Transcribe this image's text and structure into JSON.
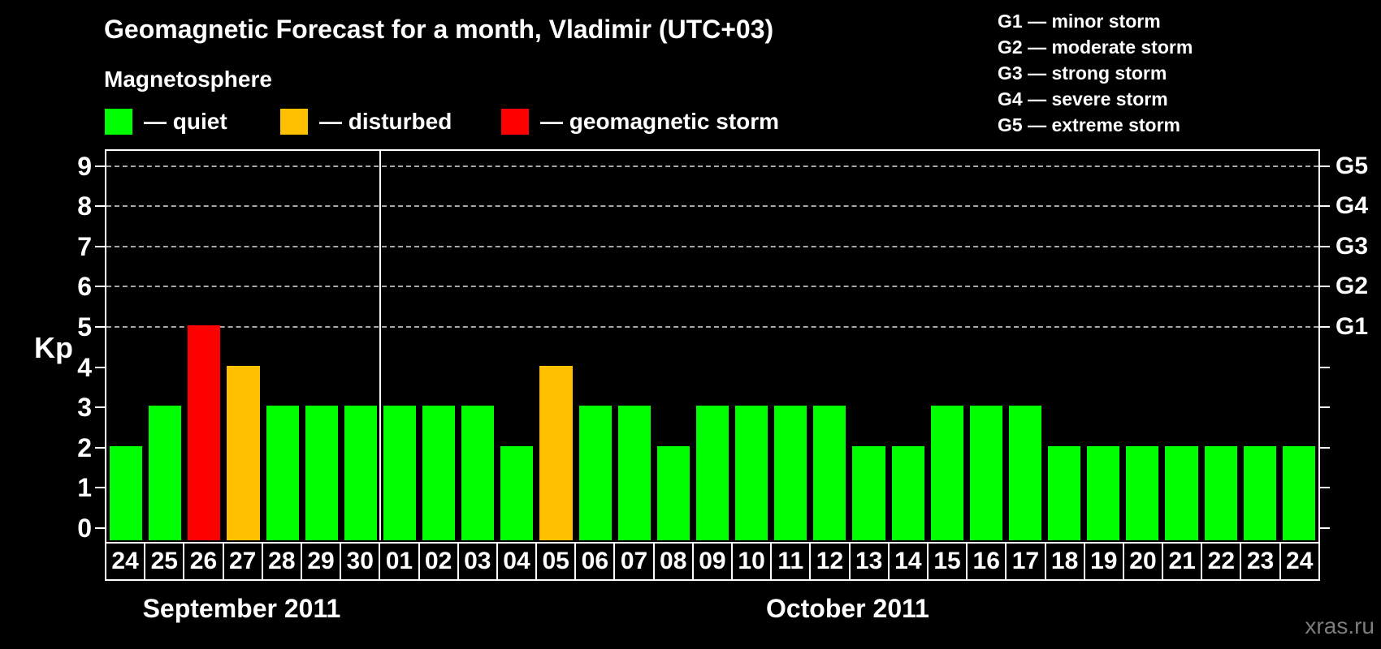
{
  "title": "Geomagnetic Forecast for a month, Vladimir (UTC+03)",
  "subtitle": "Magnetosphere",
  "legend": {
    "items": [
      {
        "label": "— quiet",
        "color": "#00ff00"
      },
      {
        "label": "— disturbed",
        "color": "#ffc000"
      },
      {
        "label": "— geomagnetic storm",
        "color": "#ff0000"
      }
    ]
  },
  "g_legend": {
    "items": [
      "G1 — minor storm",
      "G2 — moderate storm",
      "G3 — strong storm",
      "G4 — severe storm",
      "G5 — extreme storm"
    ]
  },
  "watermark": "xras.ru",
  "chart_data": {
    "type": "bar",
    "title": "Geomagnetic Forecast for a month, Vladimir (UTC+03)",
    "ylabel": "Kp",
    "ylim": [
      0,
      9.4
    ],
    "yticks": [
      "0",
      "1",
      "2",
      "3",
      "4",
      "5",
      "6",
      "7",
      "8",
      "9"
    ],
    "grid": "dashed horizontal lines at Kp 5-9 only",
    "gridlines_at": [
      5,
      6,
      7,
      8,
      9
    ],
    "right_axis_labels": [
      {
        "label": "G1",
        "kp": 5
      },
      {
        "label": "G2",
        "kp": 6
      },
      {
        "label": "G3",
        "kp": 7
      },
      {
        "label": "G4",
        "kp": 8
      },
      {
        "label": "G5",
        "kp": 9
      }
    ],
    "months": [
      {
        "label": "September 2011",
        "days": 7
      },
      {
        "label": "October 2011",
        "days": 24
      }
    ],
    "categories": [
      "24",
      "25",
      "26",
      "27",
      "28",
      "29",
      "30",
      "01",
      "02",
      "03",
      "04",
      "05",
      "06",
      "07",
      "08",
      "09",
      "10",
      "11",
      "12",
      "13",
      "14",
      "15",
      "16",
      "17",
      "18",
      "19",
      "20",
      "21",
      "22",
      "23",
      "24"
    ],
    "values": [
      2,
      3,
      5,
      4,
      3,
      3,
      3,
      3,
      3,
      3,
      2,
      4,
      3,
      3,
      2,
      3,
      3,
      3,
      3,
      2,
      2,
      3,
      3,
      3,
      2,
      2,
      2,
      2,
      2,
      2,
      2
    ],
    "statuses": [
      "quiet",
      "quiet",
      "storm",
      "disturbed",
      "quiet",
      "quiet",
      "quiet",
      "quiet",
      "quiet",
      "quiet",
      "quiet",
      "disturbed",
      "quiet",
      "quiet",
      "quiet",
      "quiet",
      "quiet",
      "quiet",
      "quiet",
      "quiet",
      "quiet",
      "quiet",
      "quiet",
      "quiet",
      "quiet",
      "quiet",
      "quiet",
      "quiet",
      "quiet",
      "quiet",
      "quiet"
    ],
    "colors_by_status": {
      "quiet": "#00ff00",
      "disturbed": "#ffc000",
      "storm": "#ff0000"
    }
  }
}
